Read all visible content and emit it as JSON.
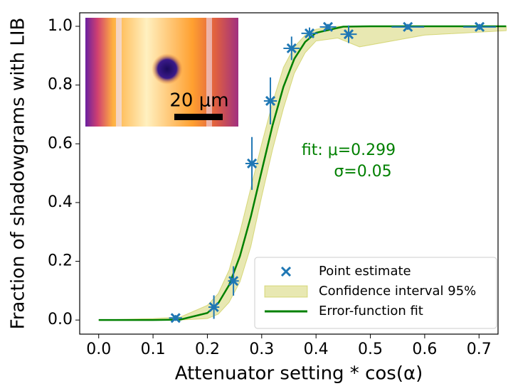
{
  "chart_data": {
    "type": "scatter",
    "xlabel": "Attenuator setting * cos(α)",
    "ylabel": "Fraction of shadowgrams with LIB",
    "xlim": [
      -0.035,
      0.735
    ],
    "ylim": [
      -0.048,
      1.046
    ],
    "xticks": [
      {
        "value": 0,
        "label": "0.0"
      },
      0.1,
      0.2,
      0.3,
      0.4,
      0.5,
      0.6,
      0.7
    ],
    "yticks": [
      {
        "value": 0,
        "label": "0.0"
      },
      0.2,
      0.4,
      0.6,
      0.8,
      {
        "value": 1,
        "label": "1.0"
      }
    ],
    "annotation": [
      "fit: μ=0.299",
      "σ=0.05"
    ],
    "inset_scale_label": "20 μm",
    "legend": "lower right",
    "series": [
      {
        "name": "Point estimate",
        "type": "scatter",
        "color": "#1f77b4",
        "x": [
          0.1415,
          0.212,
          0.248,
          0.282,
          0.316,
          0.355,
          0.388,
          0.422,
          0.46,
          0.569,
          0.701
        ],
        "values": [
          0.007,
          0.044,
          0.133,
          0.533,
          0.746,
          0.925,
          0.976,
          0.998,
          0.973,
          0.998,
          0.998
        ],
        "yerr": [
          0.01,
          0.04,
          0.05,
          0.09,
          0.08,
          0.04,
          0.02,
          0.01,
          0.03,
          0.01,
          0.01
        ],
        "xerr": [
          0.012,
          0.01,
          0.01,
          0.012,
          0.012,
          0.015,
          0.015,
          0.015,
          0.015,
          0.03,
          0.03
        ]
      },
      {
        "name": "Confidence interval 95%",
        "type": "band",
        "color": "#bcbd22",
        "x": [
          0,
          0.1,
          0.15,
          0.2,
          0.22,
          0.24,
          0.26,
          0.28,
          0.3,
          0.32,
          0.34,
          0.36,
          0.38,
          0.4,
          0.44,
          0.48,
          0.6,
          0.75
        ],
        "lower": [
          0,
          0,
          0,
          0.005,
          0.02,
          0.06,
          0.13,
          0.25,
          0.42,
          0.58,
          0.72,
          0.84,
          0.91,
          0.95,
          0.96,
          0.93,
          0.97,
          0.985
        ],
        "upper": [
          0,
          0.005,
          0.01,
          0.05,
          0.09,
          0.17,
          0.3,
          0.45,
          0.6,
          0.74,
          0.86,
          0.93,
          0.97,
          0.99,
          1,
          1,
          1,
          1
        ]
      },
      {
        "name": "Error-function fit",
        "type": "line",
        "color": "#008000",
        "x": [
          0,
          0.1,
          0.15,
          0.2,
          0.22,
          0.24,
          0.26,
          0.28,
          0.3,
          0.32,
          0.34,
          0.36,
          0.38,
          0.4,
          0.45,
          0.5,
          0.75
        ],
        "values": [
          0,
          0,
          0.0014,
          0.024,
          0.057,
          0.119,
          0.218,
          0.352,
          0.508,
          0.663,
          0.794,
          0.889,
          0.947,
          0.978,
          0.9987,
          1,
          1
        ]
      }
    ]
  }
}
